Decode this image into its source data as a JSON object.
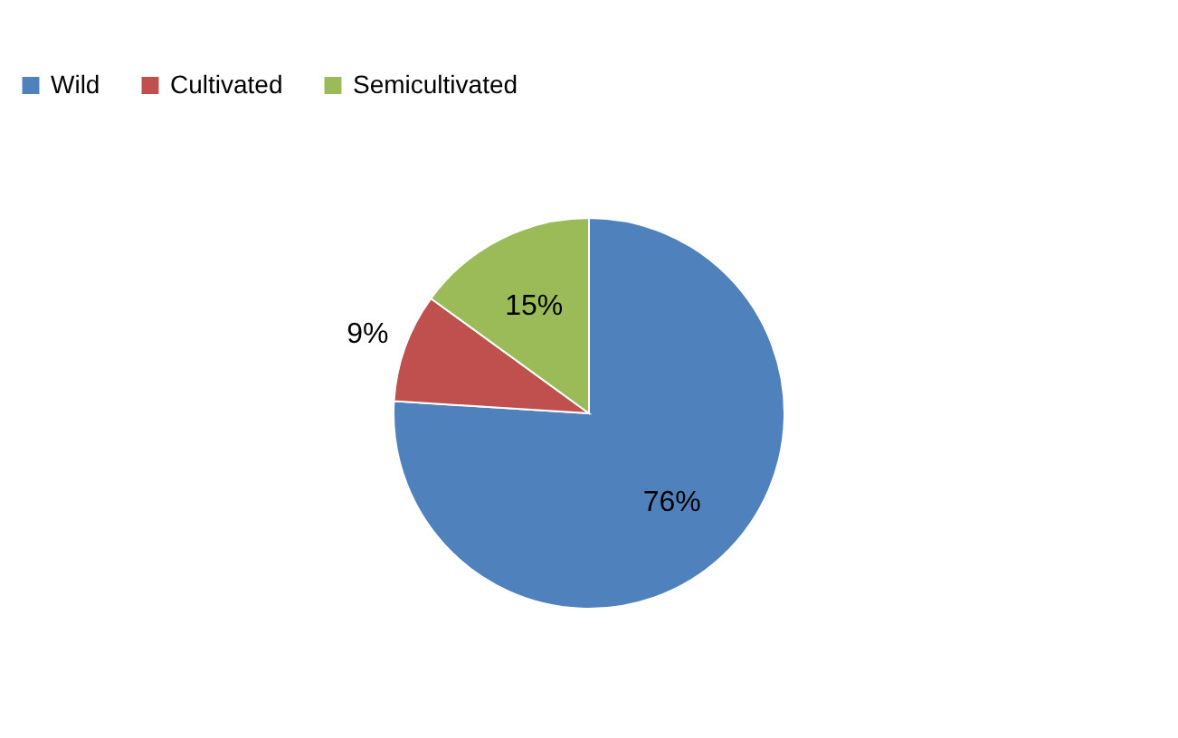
{
  "chart_data": {
    "type": "pie",
    "categories": [
      "Wild",
      "Cultivated",
      "Semicultivated"
    ],
    "values": [
      76,
      9,
      15
    ],
    "colors": [
      "#4f81bd",
      "#c0504d",
      "#9bbb59"
    ],
    "value_labels": [
      "76%",
      "9%",
      "15%"
    ],
    "legend": "top"
  }
}
